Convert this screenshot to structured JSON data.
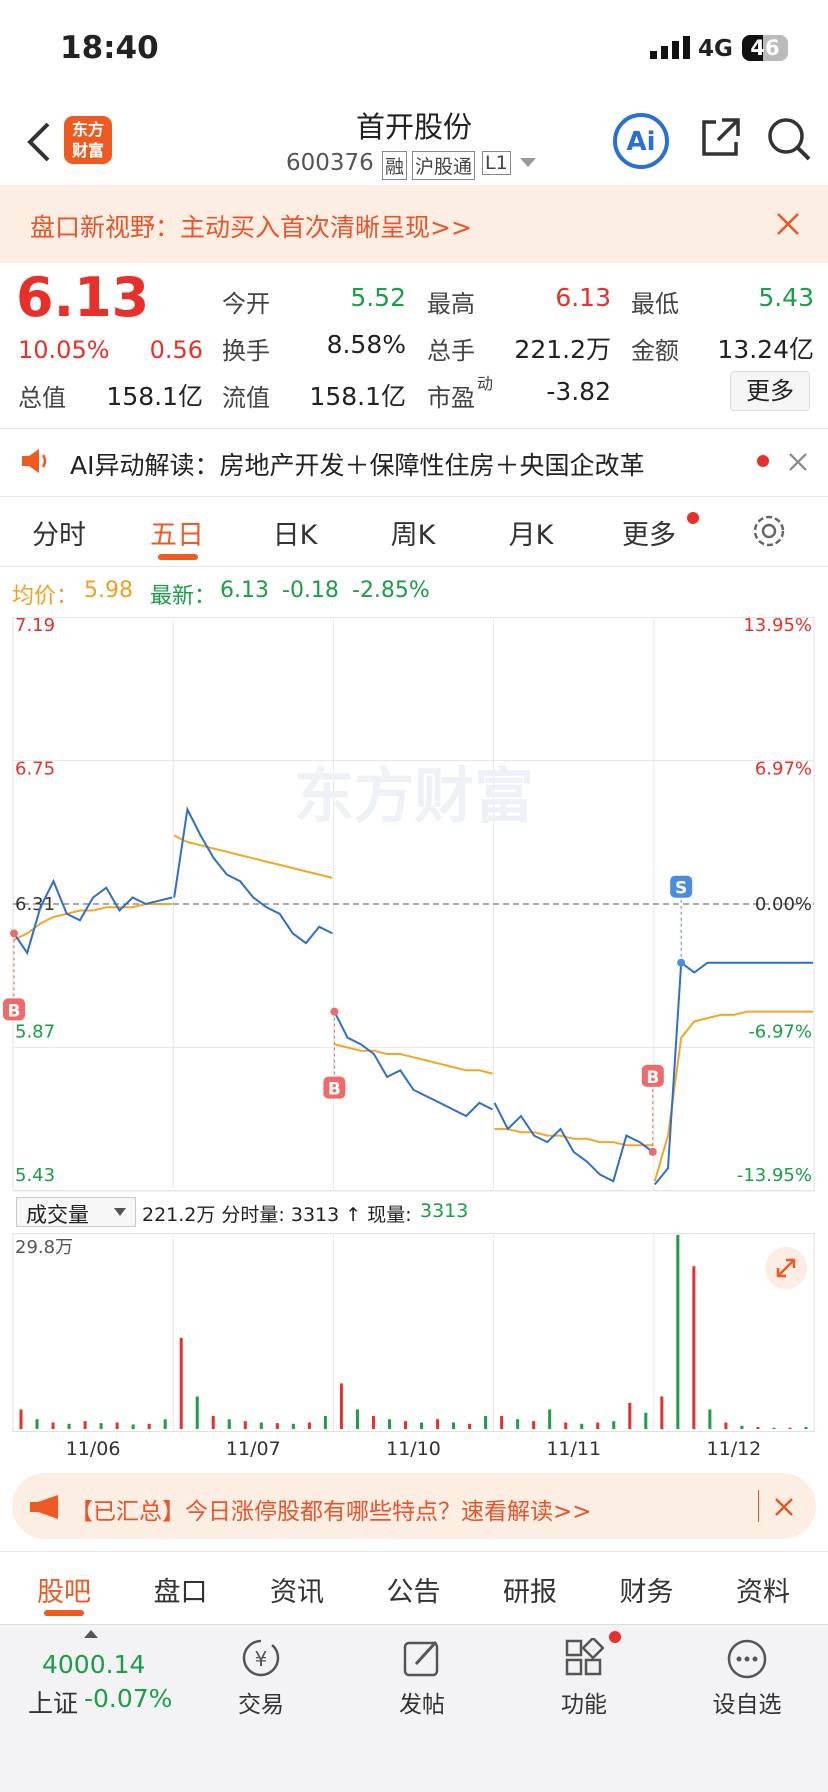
{
  "status_bar": {
    "time": "18:40",
    "network": "4G",
    "battery": "46"
  },
  "header": {
    "title": "首开股份",
    "code": "600376",
    "tags": [
      "融",
      "沪股通",
      "L1"
    ]
  },
  "banner": {
    "text": "盘口新视野：主动买入首次清晰呈现>>"
  },
  "quote": {
    "price": "6.13",
    "change_pct": "10.05%",
    "change": "0.56",
    "fields": [
      {
        "label": "今开",
        "value": "5.52"
      },
      {
        "label": "最高",
        "value": "6.13"
      },
      {
        "label": "最低",
        "value": "5.43"
      },
      {
        "label": "换手",
        "value": "8.58%"
      },
      {
        "label": "总手",
        "value": "221.2万"
      },
      {
        "label": "金额",
        "value": "13.24亿"
      },
      {
        "label": "总值",
        "value": "158.1亿"
      },
      {
        "label": "流值",
        "value": "158.1亿"
      },
      {
        "label": "市盈",
        "sup": "动",
        "value": "-3.82"
      }
    ],
    "more": "更多"
  },
  "ai_bar": {
    "text": "AI异动解读：房地产开发＋保障性住房＋央国企改革"
  },
  "tabs": [
    "分时",
    "五日",
    "日K",
    "周K",
    "月K",
    "更多"
  ],
  "info": {
    "avg_label": "均价：",
    "avg": "5.98",
    "latest_label": "最新：",
    "latest": "6.13",
    "change": "-0.18",
    "change_pct": "-2.85%"
  },
  "chart": {
    "dates": [
      "11/06",
      "11/07",
      "11/10",
      "11/11",
      "11/12"
    ],
    "ylim": [
      5.43,
      7.19
    ],
    "yticks": [
      7.19,
      6.75,
      6.31,
      5.87,
      5.43
    ],
    "right_labels": [
      "13.95%",
      "6.97%",
      "0.00%",
      "-6.97%",
      "-13.95%"
    ],
    "watermark": "东方财富",
    "days": [
      {
        "price": [
          6.22,
          6.16,
          6.3,
          6.38,
          6.28,
          6.26,
          6.33,
          6.36,
          6.29,
          6.33,
          6.31,
          6.32,
          6.33
        ],
        "avg": [
          6.2,
          6.22,
          6.25,
          6.27,
          6.28,
          6.29,
          6.29,
          6.3,
          6.3,
          6.3,
          6.31,
          6.31,
          6.31
        ],
        "volume": [
          3,
          1.5,
          1,
          0.8,
          1.2,
          0.9,
          1,
          0.7,
          0.8,
          1.5
        ]
      },
      {
        "price": [
          6.33,
          6.6,
          6.52,
          6.45,
          6.4,
          6.38,
          6.33,
          6.3,
          6.28,
          6.22,
          6.19,
          6.24,
          6.22
        ],
        "avg": [
          6.52,
          6.5,
          6.49,
          6.48,
          6.47,
          6.46,
          6.45,
          6.44,
          6.43,
          6.42,
          6.41,
          6.4,
          6.39
        ],
        "volume": [
          14,
          5,
          2,
          1.5,
          1.2,
          1,
          0.9,
          0.8,
          1,
          2
        ]
      },
      {
        "price": [
          5.98,
          5.9,
          5.88,
          5.85,
          5.78,
          5.8,
          5.74,
          5.72,
          5.7,
          5.68,
          5.66,
          5.7,
          5.68
        ],
        "avg": [
          5.88,
          5.87,
          5.86,
          5.86,
          5.85,
          5.85,
          5.84,
          5.83,
          5.82,
          5.81,
          5.8,
          5.8,
          5.79
        ],
        "volume": [
          7,
          3,
          2,
          1.5,
          1.2,
          1,
          1.5,
          1,
          0.8,
          2
        ]
      },
      {
        "price": [
          5.7,
          5.62,
          5.66,
          5.6,
          5.58,
          5.62,
          5.55,
          5.52,
          5.48,
          5.46,
          5.6,
          5.58,
          5.55
        ],
        "avg": [
          5.62,
          5.62,
          5.61,
          5.61,
          5.6,
          5.6,
          5.59,
          5.59,
          5.58,
          5.58,
          5.57,
          5.57,
          5.57
        ],
        "volume": [
          2,
          1.5,
          1.2,
          3,
          1,
          0.8,
          1,
          1.2,
          4,
          2.5
        ]
      },
      {
        "price": [
          5.45,
          5.5,
          6.13,
          6.1,
          6.13,
          6.13,
          6.13,
          6.13,
          6.13,
          6.13,
          6.13,
          6.13,
          6.13
        ],
        "avg": [
          5.46,
          5.6,
          5.9,
          5.95,
          5.96,
          5.97,
          5.97,
          5.98,
          5.98,
          5.98,
          5.98,
          5.98,
          5.98
        ],
        "volume": [
          5,
          29.8,
          25,
          3,
          1,
          0.5,
          0.3,
          0.2,
          0.2,
          0.3
        ]
      }
    ],
    "markers": [
      {
        "label": "B",
        "day": 0,
        "index": 0
      },
      {
        "label": "B",
        "day": 2,
        "index": 0
      },
      {
        "label": "B",
        "day": 3,
        "index": 12
      },
      {
        "label": "S",
        "day": 4,
        "index": 2
      }
    ],
    "volume_max": {
      "value": 29.8,
      "label": "29.8万"
    }
  },
  "volume_header": {
    "selector": "成交量",
    "text": "221.2万 分时量: 3313 ↑ 现量:",
    "current": "3313"
  },
  "ad": {
    "text": "【已汇总】今日涨停股都有哪些特点？速看解读>>"
  },
  "bottom_tabs": [
    "股吧",
    "盘口",
    "资讯",
    "公告",
    "研报",
    "财务",
    "资料"
  ],
  "nav": {
    "index_value": "4000.14",
    "index_name": "上证",
    "index_change": "-0.07%",
    "items": [
      "交易",
      "发帖",
      "功能",
      "设自选"
    ]
  }
}
